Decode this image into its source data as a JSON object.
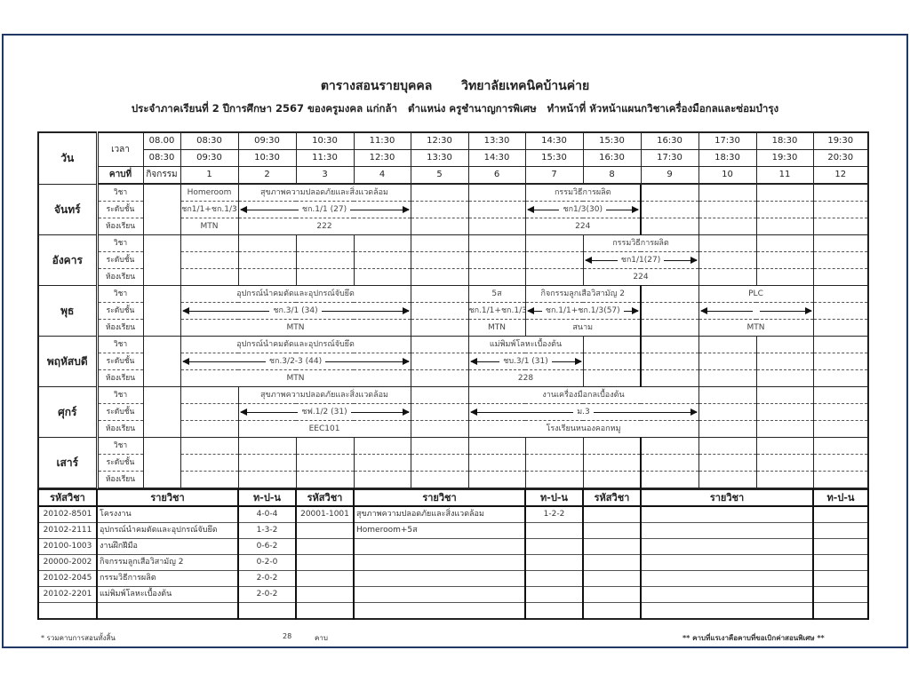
{
  "header": {
    "title": "ตารางสอนรายบุคคล",
    "college": "วิทยาลัยเทคนิคบ้านค่าย",
    "subtitle_parts": [
      "ประจำภาคเรียนที่ 2 ปีการศึกษา 2567 ของครูมงคล แก่กล้า",
      "ตำแหน่ง ครูชำนาญการพิเศษ",
      "ทำหน้าที่ หัวหน้าแผนกวิชาเครื่องมือกลและซ่อมบำรุง"
    ]
  },
  "schedule": {
    "day_header": "วัน",
    "time_header": "เวลา",
    "period_header": "คาบที่",
    "activity_header": "กิจกรรม",
    "times": [
      [
        "08.00",
        "08:30"
      ],
      [
        "08:30",
        "09:30"
      ],
      [
        "09:30",
        "10:30"
      ],
      [
        "10:30",
        "11:30"
      ],
      [
        "11:30",
        "12:30"
      ],
      [
        "12:30",
        "13:30"
      ],
      [
        "13:30",
        "14:30"
      ],
      [
        "14:30",
        "15:30"
      ],
      [
        "15:30",
        "16:30"
      ],
      [
        "16:30",
        "17:30"
      ],
      [
        "17:30",
        "18:30"
      ],
      [
        "18:30",
        "19:30"
      ],
      [
        "19:30",
        "20:30"
      ]
    ],
    "periods": [
      "1",
      "2",
      "3",
      "4",
      "5",
      "6",
      "7",
      "8",
      "9",
      "10",
      "11",
      "12"
    ],
    "sub_labels": [
      "วิชา",
      "ระดับชั้น",
      "ห้องเรียน"
    ],
    "days": [
      {
        "name": "จันทร์",
        "slots": [
          {
            "span": 1,
            "subject": "Homeroom",
            "level": "ชก1/1+ชก.1/3",
            "room": "MTN"
          },
          {
            "span": 3,
            "subject": "สุขภาพความปลอดภัยและสิ่งแวดล้อม",
            "level": "ชก.1/1 (27)",
            "room": "222",
            "arrows": true
          },
          {
            "span": 1
          },
          {
            "span": 1
          },
          {
            "span": 2,
            "subject": "กรรมวิธีการผลิต",
            "level": "ชก1/3(30)",
            "room": "224",
            "arrows": true
          },
          {
            "span": 1
          },
          {
            "span": 1
          },
          {
            "span": 1
          },
          {
            "span": 1
          }
        ]
      },
      {
        "name": "อังคาร",
        "slots": [
          {
            "span": 1
          },
          {
            "span": 1
          },
          {
            "span": 1
          },
          {
            "span": 1
          },
          {
            "span": 1
          },
          {
            "span": 1
          },
          {
            "span": 1
          },
          {
            "span": 2,
            "subject": "กรรมวิธีการผลิต",
            "level": "ชก1/1(27)",
            "room": "224",
            "arrows": true
          },
          {
            "span": 1
          },
          {
            "span": 1
          },
          {
            "span": 1
          }
        ]
      },
      {
        "name": "พุธ",
        "slots": [
          {
            "span": 4,
            "subject": "อุปกรณ์นำคมตัดและอุปกรณ์จับยึด",
            "level": "ชก.3/1 (34)",
            "room": "MTN",
            "arrows": true
          },
          {
            "span": 1
          },
          {
            "span": 1,
            "subject": "5ส",
            "level": "ชก.1/1+ชก.1/3",
            "room": "MTN"
          },
          {
            "span": 2,
            "subject": "กิจกรรมลูกเสือวิสามัญ 2",
            "level": "ชก.1/1+ชก.1/3(57)",
            "room": "สนาม",
            "arrows": true
          },
          {
            "span": 1
          },
          {
            "span": 2,
            "subject": "PLC",
            "level": "",
            "room": "MTN",
            "arrows": true
          },
          {
            "span": 1
          }
        ]
      },
      {
        "name": "พฤหัสบดี",
        "slots": [
          {
            "span": 4,
            "subject": "อุปกรณ์นำคมตัดและอุปกรณ์จับยึด",
            "level": "ชก.3/2-3 (44)",
            "room": "MTN",
            "arrows": true
          },
          {
            "span": 1
          },
          {
            "span": 2,
            "subject": "แม่พิมพ์โลหะเบื้องต้น",
            "level": "ชบ.3/1 (31)",
            "room": "228",
            "arrows": true
          },
          {
            "span": 1
          },
          {
            "span": 1
          },
          {
            "span": 1
          },
          {
            "span": 1
          },
          {
            "span": 1
          }
        ]
      },
      {
        "name": "ศุกร์",
        "slots": [
          {
            "span": 1
          },
          {
            "span": 3,
            "subject": "สุขภาพความปลอดภัยและสิ่งแวดล้อม",
            "level": "ชฟ.1/2 (31)",
            "room": "EEC101",
            "arrows": true
          },
          {
            "span": 1
          },
          {
            "span": 4,
            "subject": "งานเครื่องมือกลเบื้องต้น",
            "level": "ม.3",
            "room": "โรงเรียนหนองคอกหมู",
            "arrows": true
          },
          {
            "span": 1
          },
          {
            "span": 1
          },
          {
            "span": 1
          }
        ]
      },
      {
        "name": "เสาร์",
        "slots": [
          {
            "span": 1
          },
          {
            "span": 1
          },
          {
            "span": 1
          },
          {
            "span": 1
          },
          {
            "span": 1
          },
          {
            "span": 1
          },
          {
            "span": 1
          },
          {
            "span": 1
          },
          {
            "span": 1
          },
          {
            "span": 1
          },
          {
            "span": 1
          },
          {
            "span": 1
          }
        ]
      }
    ]
  },
  "subjects": {
    "headers": [
      "รหัสวิชา",
      "รายวิชา",
      "ท-ป-น"
    ],
    "rows": [
      [
        [
          "20102-8501",
          "โครงงาน",
          "4-0-4"
        ],
        [
          "20001-1001",
          "สุขภาพความปลอดภัยและสิ่งแวดล้อม",
          "1-2-2"
        ],
        [
          "",
          "",
          ""
        ]
      ],
      [
        [
          "20102-2111",
          "อุปกรณ์นำคมตัดและอุปกรณ์จับยึด",
          "1-3-2"
        ],
        [
          "",
          "Homeroom+5ส",
          ""
        ],
        [
          "",
          "",
          ""
        ]
      ],
      [
        [
          "20100-1003",
          "งานฝึกฝีมือ",
          "0-6-2"
        ],
        [
          "",
          "",
          ""
        ],
        [
          "",
          "",
          ""
        ]
      ],
      [
        [
          "20000-2002",
          "กิจกรรมลูกเสือวิสามัญ 2",
          "0-2-0"
        ],
        [
          "",
          "",
          ""
        ],
        [
          "",
          "",
          ""
        ]
      ],
      [
        [
          "20102-2045",
          "กรรมวิธีการผลิต",
          "2-0-2"
        ],
        [
          "",
          "",
          ""
        ],
        [
          "",
          "",
          ""
        ]
      ],
      [
        [
          "20102-2201",
          "แม่พิมพ์โลหะเบื้องต้น",
          "2-0-2"
        ],
        [
          "",
          "",
          ""
        ],
        [
          "",
          "",
          ""
        ]
      ],
      [
        [
          "",
          "",
          ""
        ],
        [
          "",
          "",
          ""
        ],
        [
          "",
          "",
          ""
        ]
      ]
    ]
  },
  "footer": {
    "total_label": "* รวมคาบการสอนทั้งสิ้น",
    "total_value": "28",
    "total_unit": "คาบ",
    "note": "** คาบที่แรเงาคือคาบที่ขอเบิกค่าสอนพิเศษ **"
  }
}
